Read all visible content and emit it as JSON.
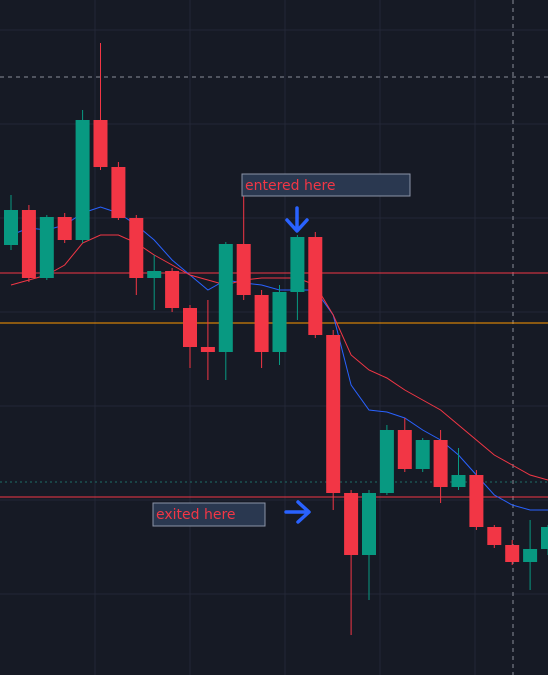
{
  "chart_data": {
    "type": "candlestick",
    "ylim": [
      0,
      675
    ],
    "up_color": "#089981",
    "down_color": "#f23645",
    "open": [
      430,
      465,
      397,
      458,
      435,
      555,
      508,
      457,
      397,
      404,
      367,
      328,
      323,
      431,
      380,
      323,
      383,
      438,
      340,
      182,
      120,
      182,
      245,
      206,
      235,
      188,
      200,
      148,
      130,
      113,
      126
    ],
    "high": [
      480,
      470,
      460,
      462,
      565,
      632,
      513,
      460,
      420,
      407,
      370,
      375,
      433,
      480,
      385,
      390,
      440,
      443,
      345,
      185,
      185,
      250,
      257,
      237,
      245,
      227,
      205,
      150,
      135,
      155,
      150
    ],
    "low": [
      425,
      393,
      395,
      432,
      432,
      505,
      455,
      380,
      365,
      363,
      307,
      295,
      295,
      375,
      307,
      310,
      355,
      337,
      165,
      40,
      75,
      180,
      203,
      203,
      172,
      185,
      145,
      127,
      110,
      85,
      120
    ],
    "close": [
      465,
      397,
      458,
      435,
      555,
      508,
      457,
      397,
      404,
      367,
      328,
      323,
      431,
      380,
      323,
      383,
      438,
      340,
      182,
      120,
      182,
      245,
      206,
      235,
      188,
      200,
      148,
      130,
      113,
      126,
      148
    ],
    "lines": [
      {
        "color": "#2962ff",
        "values": [
          440,
          447,
          445,
          450,
          462,
          468,
          462,
          450,
          435,
          415,
          400,
          385,
          395,
          392,
          390,
          385,
          385,
          385,
          360,
          290,
          265,
          263,
          257,
          245,
          235,
          220,
          200,
          180,
          170,
          165,
          165
        ]
      },
      {
        "color": "#f23645",
        "values": [
          390,
          395,
          400,
          410,
          432,
          440,
          440,
          432,
          420,
          410,
          400,
          395,
          390,
          395,
          397,
          397,
          397,
          390,
          360,
          320,
          305,
          297,
          285,
          275,
          265,
          250,
          235,
          220,
          210,
          200,
          195
        ]
      }
    ],
    "levels": [
      {
        "value": 402,
        "color": "#f23645"
      },
      {
        "value": 352,
        "color": "#ff9800"
      },
      {
        "value": 178,
        "color": "#f23645"
      }
    ],
    "annotations": [
      "entered here",
      "exited here"
    ]
  }
}
